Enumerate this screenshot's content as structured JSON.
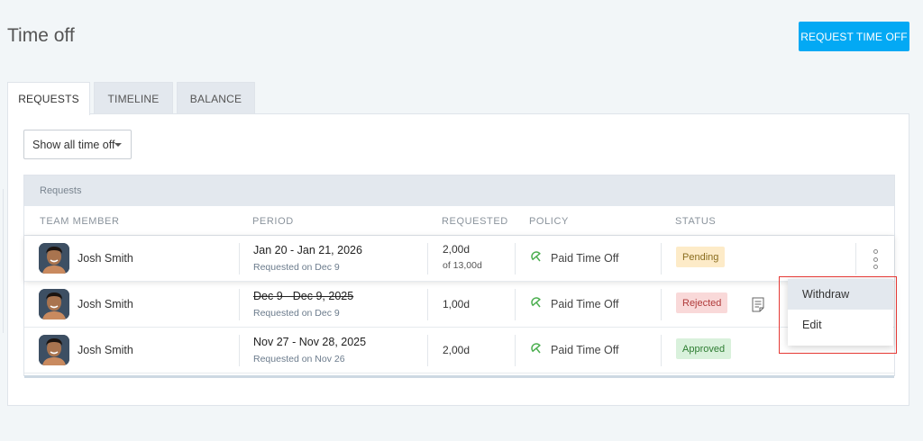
{
  "page": {
    "title": "Time off"
  },
  "actions": {
    "request_button": "REQUEST TIME OFF"
  },
  "tabs": [
    {
      "label": "REQUESTS",
      "active": true
    },
    {
      "label": "TIMELINE",
      "active": false
    },
    {
      "label": "BALANCE",
      "active": false
    }
  ],
  "filter": {
    "selected": "Show all time off"
  },
  "table": {
    "caption": "Requests",
    "columns": [
      "TEAM MEMBER",
      "PERIOD",
      "REQUESTED",
      "POLICY",
      "STATUS"
    ],
    "rows": [
      {
        "member": "Josh Smith",
        "period": "Jan 20 - Jan 21, 2026",
        "requested_on": "Requested on Dec 9",
        "requested": "2,00d",
        "requested_of": "of 13,00d",
        "policy": "Paid Time Off",
        "status": "Pending"
      },
      {
        "member": "Josh Smith",
        "period": "Dec 9 - Dec 9, 2025",
        "requested_on": "Requested on Dec 9",
        "requested": "1,00d",
        "policy": "Paid Time Off",
        "status": "Rejected"
      },
      {
        "member": "Josh Smith",
        "period": "Nov 27 - Nov 28, 2025",
        "requested_on": "Requested on Nov 26",
        "requested": "2,00d",
        "policy": "Paid Time Off",
        "status": "Approved"
      }
    ]
  },
  "context_menu": {
    "items": [
      "Withdraw",
      "Edit"
    ]
  },
  "colors": {
    "accent": "#03a9f4",
    "pending_bg": "#fdebc8",
    "pending_text": "#8a6d1f",
    "rejected_bg": "#f9d9d9",
    "rejected_text": "#b03a3a",
    "approved_bg": "#d9f1dc",
    "approved_text": "#2e7d32",
    "policy_icon": "#4caf50",
    "highlight": "#e53935"
  },
  "icons": {
    "policy": "umbrella-icon",
    "note": "note-icon",
    "more": "kebab-menu-icon",
    "dropdown": "caret-down-icon"
  }
}
